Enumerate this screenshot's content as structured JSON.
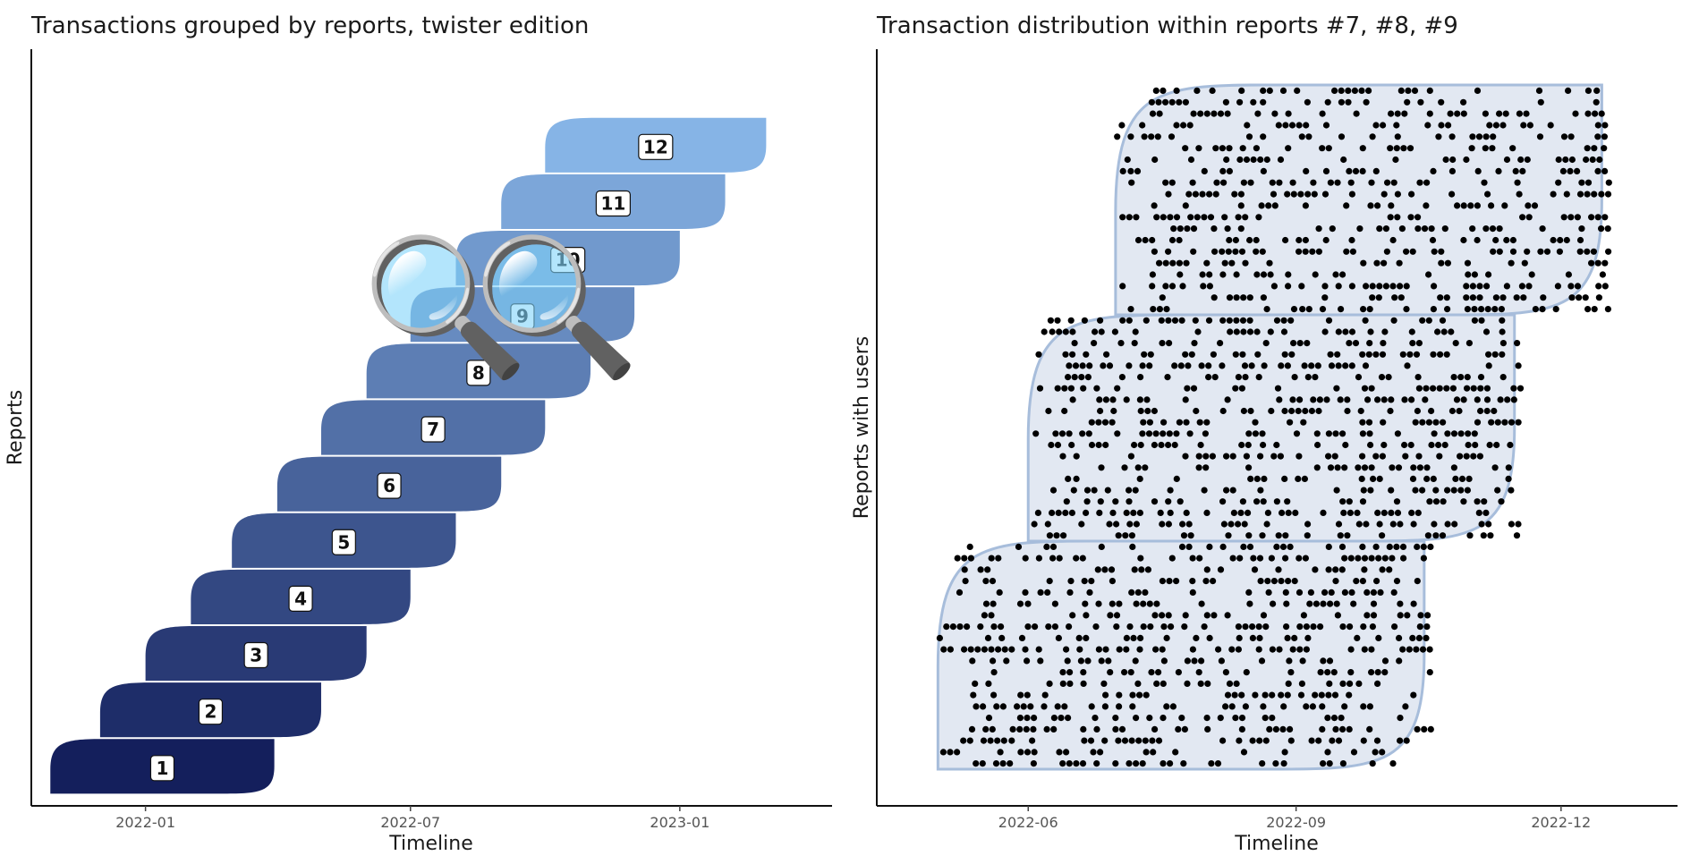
{
  "chart_data": [
    {
      "type": "area",
      "title": "Transactions grouped by reports, twister edition",
      "xlabel": "Timeline",
      "ylabel": "Reports",
      "x_ticks": [
        "2022-01",
        "2022-07",
        "2023-01"
      ],
      "xlim": [
        "2021-10-15",
        "2023-04-15"
      ],
      "ylim": [
        0.3,
        13.7
      ],
      "grid": false,
      "colors": {
        "dark": "#141f5c",
        "light": "#86b4e6"
      },
      "series": [
        {
          "label": "1",
          "start": "2021-10-28",
          "end": "2022-03-30"
        },
        {
          "label": "2",
          "start": "2021-12-01",
          "end": "2022-05-01"
        },
        {
          "label": "3",
          "start": "2022-01-01",
          "end": "2022-06-01"
        },
        {
          "label": "4",
          "start": "2022-02-01",
          "end": "2022-07-01"
        },
        {
          "label": "5",
          "start": "2022-03-01",
          "end": "2022-08-01"
        },
        {
          "label": "6",
          "start": "2022-04-01",
          "end": "2022-09-01"
        },
        {
          "label": "7",
          "start": "2022-05-01",
          "end": "2022-10-01"
        },
        {
          "label": "8",
          "start": "2022-06-01",
          "end": "2022-11-01"
        },
        {
          "label": "9",
          "start": "2022-07-01",
          "end": "2022-12-01"
        },
        {
          "label": "10",
          "start": "2022-08-01",
          "end": "2023-01-01"
        },
        {
          "label": "11",
          "start": "2022-09-01",
          "end": "2023-02-01"
        },
        {
          "label": "12",
          "start": "2022-10-01",
          "end": "2023-03-01"
        }
      ],
      "annotations": [
        {
          "icon": "magnifying-glass-icon",
          "glyph": "🔍",
          "count": 2,
          "over_reports": [
            "7",
            "8",
            "9"
          ]
        }
      ]
    },
    {
      "type": "scatter",
      "title": "Transaction distribution within reports #7, #8, #9",
      "xlabel": "Timeline",
      "ylabel": "Reports with users",
      "x_ticks": [
        "2022-06",
        "2022-09",
        "2022-12"
      ],
      "xlim": [
        "2022-04-10",
        "2023-01-10"
      ],
      "grid": false,
      "fill_color": "#e2e8f2",
      "stroke_color": "#a7bddb",
      "point_color": "#000000",
      "groups": [
        {
          "report": "7",
          "start": "2022-05-01",
          "end": "2022-10-15",
          "users": 20
        },
        {
          "report": "8",
          "start": "2022-06-01",
          "end": "2022-11-15",
          "users": 20
        },
        {
          "report": "9",
          "start": "2022-07-01",
          "end": "2022-12-15",
          "users": 20
        }
      ]
    }
  ]
}
